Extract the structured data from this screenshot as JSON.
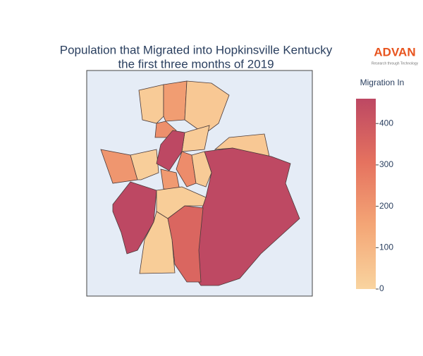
{
  "chart_data": {
    "type": "choropleth",
    "title": "Population that Migrated into Hopkinsville Kentucky",
    "subtitle": "the first three months of 2019",
    "logo": {
      "name": "ADVAN",
      "tagline": "Research through Technology"
    },
    "colorbar": {
      "title": "Migration In",
      "lim": [
        0,
        460
      ],
      "ticks": [
        0,
        100,
        200,
        300,
        400
      ],
      "colorscale": [
        "#f9d49f",
        "#f4a676",
        "#e5725f",
        "#bd4863"
      ]
    },
    "values": [
      30,
      180,
      40,
      220,
      460,
      30,
      40,
      455,
      200,
      20,
      230,
      30,
      190,
      460,
      25,
      350,
      25
    ]
  }
}
